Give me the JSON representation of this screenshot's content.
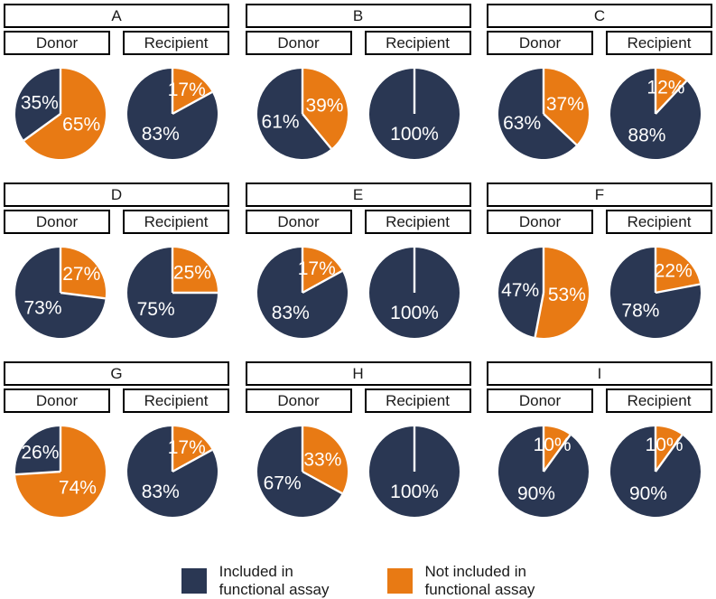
{
  "figure": {
    "background": "#ffffff",
    "group_labels": [
      "Donor",
      "Recipient"
    ],
    "legend": {
      "position": "bottom",
      "items": [
        {
          "name": "included",
          "label": "Included in\nfunctional assay",
          "color": "#2A3753"
        },
        {
          "name": "not_included",
          "label": "Not included in\nfunctional assay",
          "color": "#E87A14"
        }
      ]
    }
  },
  "chart_data": {
    "type": "pie",
    "title": "",
    "facet_rows": [
      "A",
      "B",
      "C",
      "D",
      "E",
      "F",
      "G",
      "H",
      "I"
    ],
    "facet_columns": [
      "Donor",
      "Recipient"
    ],
    "slice_labels": [
      "Included in functional assay",
      "Not included in functional assay"
    ],
    "slice_colors": [
      "#2A3753",
      "#E87A14"
    ],
    "slice_start": "12 o'clock, not-included slice drawn first clockwise",
    "panels": [
      {
        "panel": "A",
        "donor": {
          "included_pct": 35,
          "not_included_pct": 65
        },
        "recipient": {
          "included_pct": 83,
          "not_included_pct": 17
        }
      },
      {
        "panel": "B",
        "donor": {
          "included_pct": 61,
          "not_included_pct": 39
        },
        "recipient": {
          "included_pct": 100,
          "not_included_pct": 0
        }
      },
      {
        "panel": "C",
        "donor": {
          "included_pct": 63,
          "not_included_pct": 37
        },
        "recipient": {
          "included_pct": 88,
          "not_included_pct": 12
        }
      },
      {
        "panel": "D",
        "donor": {
          "included_pct": 73,
          "not_included_pct": 27
        },
        "recipient": {
          "included_pct": 75,
          "not_included_pct": 25
        }
      },
      {
        "panel": "E",
        "donor": {
          "included_pct": 83,
          "not_included_pct": 17
        },
        "recipient": {
          "included_pct": 100,
          "not_included_pct": 0
        }
      },
      {
        "panel": "F",
        "donor": {
          "included_pct": 47,
          "not_included_pct": 53
        },
        "recipient": {
          "included_pct": 78,
          "not_included_pct": 22
        }
      },
      {
        "panel": "G",
        "donor": {
          "included_pct": 26,
          "not_included_pct": 74
        },
        "recipient": {
          "included_pct": 83,
          "not_included_pct": 17
        }
      },
      {
        "panel": "H",
        "donor": {
          "included_pct": 67,
          "not_included_pct": 33
        },
        "recipient": {
          "included_pct": 100,
          "not_included_pct": 0
        }
      },
      {
        "panel": "I",
        "donor": {
          "included_pct": 90,
          "not_included_pct": 10
        },
        "recipient": {
          "included_pct": 90,
          "not_included_pct": 10
        }
      }
    ]
  }
}
